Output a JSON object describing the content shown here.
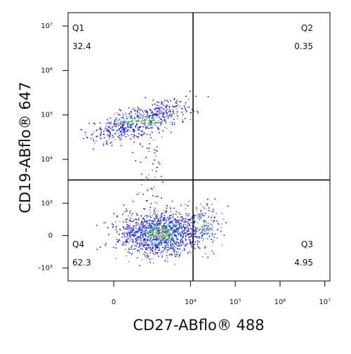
{
  "chart_data": {
    "type": "flow-quadrant",
    "xlabel": "CD27-ABflo® 488",
    "ylabel": "CD19-ABflo® 647",
    "scale": "biexponential",
    "xlim": [
      -2000,
      13000000
    ],
    "ylim": [
      -2000,
      20000000
    ],
    "xticks": [
      {
        "value": 0,
        "label": "0"
      },
      {
        "value": 10000,
        "label": "10⁴"
      },
      {
        "value": 100000,
        "label": "10⁵"
      },
      {
        "value": 1000000,
        "label": "10⁶"
      },
      {
        "value": 10000000,
        "label": "10⁷"
      }
    ],
    "yticks": [
      {
        "value": -1000,
        "label": "-10³"
      },
      {
        "value": 0,
        "label": "0"
      },
      {
        "value": 1000,
        "label": "10³"
      },
      {
        "value": 10000,
        "label": "10⁴"
      },
      {
        "value": 100000,
        "label": "10⁵"
      },
      {
        "value": 1000000,
        "label": "10⁶"
      },
      {
        "value": 10000000,
        "label": "10⁷"
      }
    ],
    "gates": {
      "x": 11400,
      "y": 3440
    },
    "quadrants": [
      {
        "name": "Q1",
        "value": 32.4,
        "corner": "top-left"
      },
      {
        "name": "Q2",
        "value": 0.35,
        "corner": "top-right"
      },
      {
        "name": "Q3",
        "value": 4.95,
        "corner": "bottom-right"
      },
      {
        "name": "Q4",
        "value": 62.3,
        "corner": "bottom-left"
      }
    ]
  }
}
